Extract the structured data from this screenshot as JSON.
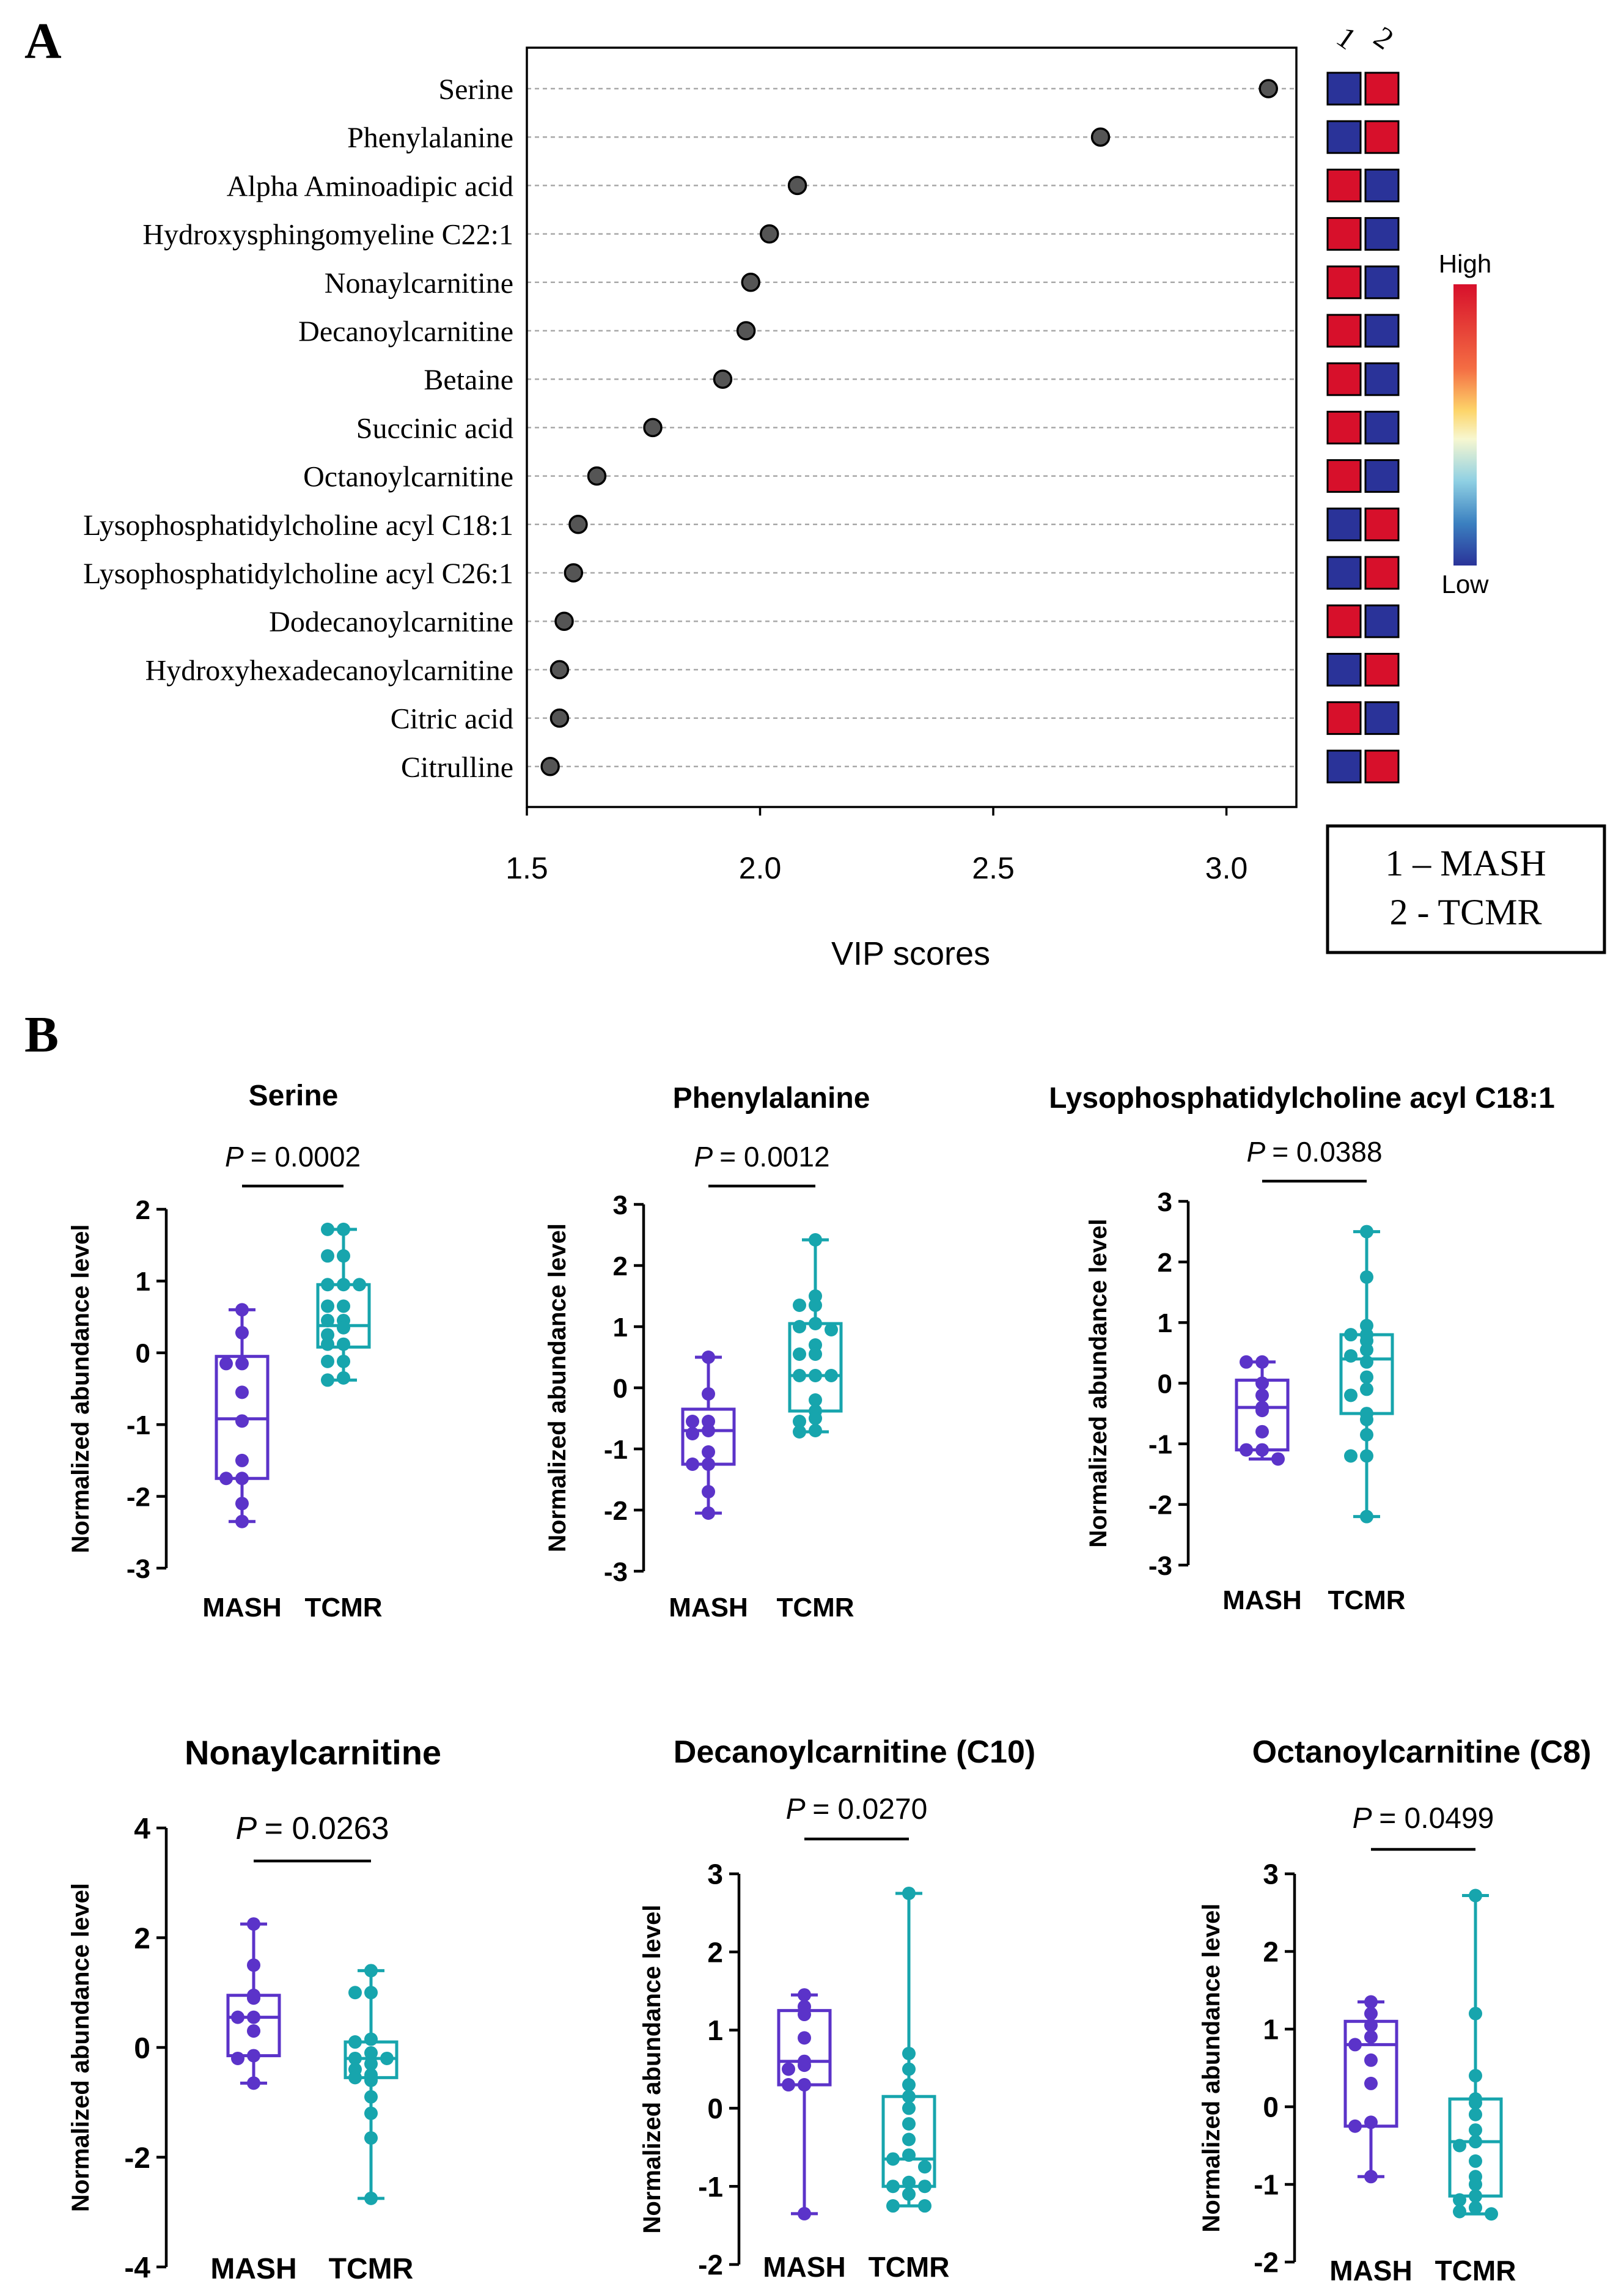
{
  "panel_a": {
    "label": "A",
    "metabolites": [
      "Serine",
      "Phenylalanine",
      "Alpha Aminoadipic acid",
      "Hydroxysphingomyeline C22:1",
      "Nonaylcarnitine",
      "Decanoylcarnitine",
      "Betaine",
      "Succinic acid",
      "Octanoylcarnitine",
      "Lysophosphatidylcholine acyl C18:1",
      "Lysophosphatidylcholine acyl C26:1",
      "Dodecanoylcarnitine",
      "Hydroxyhexadecanoylcarnitine",
      "Citric acid",
      "Citrulline"
    ],
    "heat_col_labels": [
      "1",
      "2"
    ],
    "heat_high_group": [
      2,
      2,
      1,
      1,
      1,
      1,
      1,
      1,
      1,
      2,
      2,
      1,
      2,
      1,
      2
    ],
    "scale_high": "High",
    "scale_low": "Low",
    "legend_line1": "1 – MASH",
    "legend_line2": "2 - TCMR",
    "colors": {
      "high": "#d7102b",
      "low": "#2a3399",
      "dot": "#555555"
    }
  },
  "panel_b": {
    "label": "B",
    "y_label": "Normalized abundance level",
    "groups": [
      "MASH",
      "TCMR"
    ],
    "colors": {
      "mash": "#5b33c9",
      "tcmr": "#17a5ad"
    }
  },
  "chart_data": [
    {
      "type": "scatter",
      "title": "",
      "xlabel": "VIP scores",
      "ylabel": "",
      "xlim": [
        1.5,
        3.15
      ],
      "xticks": [
        "1.5",
        "2.0",
        "2.5",
        "3.0"
      ],
      "categories": [
        "Serine",
        "Phenylalanine",
        "Alpha Aminoadipic acid",
        "Hydroxysphingomyeline C22:1",
        "Nonaylcarnitine",
        "Decanoylcarnitine",
        "Betaine",
        "Succinic acid",
        "Octanoylcarnitine",
        "Lysophosphatidylcholine acyl C18:1",
        "Lysophosphatidylcholine acyl C26:1",
        "Dodecanoylcarnitine",
        "Hydroxyhexadecanoylcarnitine",
        "Citric acid",
        "Citrulline"
      ],
      "values": [
        3.09,
        2.73,
        2.08,
        2.02,
        1.98,
        1.97,
        1.92,
        1.77,
        1.65,
        1.61,
        1.6,
        1.58,
        1.57,
        1.57,
        1.55
      ]
    },
    {
      "type": "box",
      "title": "Serine",
      "p_value": "= 0.0002",
      "ylim": [
        -3,
        2
      ],
      "yticks": [
        "-3",
        "-2",
        "-1",
        "0",
        "1",
        "2"
      ],
      "series": [
        {
          "name": "MASH",
          "min": -2.35,
          "q1": -1.75,
          "median": -0.92,
          "q3": -0.05,
          "max": 0.6,
          "points": [
            0.6,
            0.28,
            -0.15,
            -0.15,
            -0.55,
            -0.95,
            -1.5,
            -1.75,
            -1.75,
            -2.1,
            -2.35
          ]
        },
        {
          "name": "TCMR",
          "min": -0.38,
          "q1": 0.08,
          "median": 0.38,
          "q3": 0.95,
          "max": 1.72,
          "points": [
            1.72,
            1.72,
            1.35,
            1.35,
            0.95,
            0.95,
            0.95,
            0.65,
            0.65,
            0.45,
            0.45,
            0.35,
            0.25,
            0.12,
            0.12,
            -0.12,
            -0.12,
            -0.35,
            -0.38
          ]
        }
      ]
    },
    {
      "type": "box",
      "title": "Phenylalanine",
      "p_value": "= 0.0012",
      "ylim": [
        -3,
        3
      ],
      "yticks": [
        "-3",
        "-2",
        "-1",
        "0",
        "1",
        "2",
        "3"
      ],
      "series": [
        {
          "name": "MASH",
          "min": -2.05,
          "q1": -1.25,
          "median": -0.7,
          "q3": -0.35,
          "max": 0.5,
          "points": [
            0.5,
            -0.1,
            -0.55,
            -0.55,
            -0.7,
            -0.75,
            -1.05,
            -1.25,
            -1.25,
            -1.7,
            -2.05
          ]
        },
        {
          "name": "TCMR",
          "min": -0.72,
          "q1": -0.38,
          "median": 0.2,
          "q3": 1.05,
          "max": 2.42,
          "points": [
            2.42,
            1.5,
            1.35,
            1.35,
            1.05,
            1.0,
            0.95,
            0.7,
            0.55,
            0.55,
            0.2,
            0.2,
            0.2,
            -0.2,
            -0.38,
            -0.5,
            -0.55,
            -0.7,
            -0.72
          ]
        }
      ]
    },
    {
      "type": "box",
      "title": "Lysophosphatidylcholine acyl C18:1",
      "p_value": "= 0.0388",
      "ylim": [
        -3,
        3
      ],
      "yticks": [
        "-3",
        "-2",
        "-1",
        "0",
        "1",
        "2",
        "3"
      ],
      "series": [
        {
          "name": "MASH",
          "min": -1.25,
          "q1": -1.1,
          "median": -0.4,
          "q3": 0.05,
          "max": 0.35,
          "points": [
            0.35,
            0.35,
            0.0,
            -0.2,
            -0.4,
            -0.45,
            -0.8,
            -1.1,
            -1.1,
            -1.25
          ]
        },
        {
          "name": "TCMR",
          "min": -2.2,
          "q1": -0.5,
          "median": 0.4,
          "q3": 0.8,
          "max": 2.5,
          "points": [
            2.5,
            1.75,
            0.95,
            0.8,
            0.8,
            0.7,
            0.55,
            0.45,
            0.35,
            0.1,
            -0.1,
            -0.2,
            -0.5,
            -0.6,
            -0.85,
            -1.2,
            -1.2,
            -2.2
          ]
        }
      ]
    },
    {
      "type": "box",
      "title": "Nonaylcarnitine",
      "p_value": "= 0.0263",
      "ylim": [
        -4,
        4
      ],
      "yticks": [
        "-4",
        "-2",
        "0",
        "2",
        "4"
      ],
      "series": [
        {
          "name": "MASH",
          "min": -0.65,
          "q1": -0.15,
          "median": 0.55,
          "q3": 0.95,
          "max": 2.25,
          "points": [
            2.25,
            1.5,
            0.95,
            0.9,
            0.55,
            0.55,
            0.3,
            -0.15,
            -0.2,
            -0.65
          ]
        },
        {
          "name": "TCMR",
          "min": -2.75,
          "q1": -0.55,
          "median": -0.2,
          "q3": 0.1,
          "max": 1.4,
          "points": [
            1.4,
            1.0,
            1.0,
            0.15,
            0.1,
            -0.1,
            -0.2,
            -0.2,
            -0.3,
            -0.4,
            -0.5,
            -0.55,
            -0.6,
            -0.9,
            -1.2,
            -1.65,
            -2.75
          ]
        }
      ]
    },
    {
      "type": "box",
      "title": "Decanoylcarnitine (C10)",
      "p_value": "= 0.0270",
      "ylim": [
        -2,
        3
      ],
      "yticks": [
        "-2",
        "-1",
        "0",
        "1",
        "2",
        "3"
      ],
      "series": [
        {
          "name": "MASH",
          "min": -1.35,
          "q1": 0.3,
          "median": 0.6,
          "q3": 1.25,
          "max": 1.45,
          "points": [
            1.45,
            1.3,
            1.2,
            0.9,
            0.6,
            0.55,
            0.5,
            0.3,
            0.3,
            -1.35
          ]
        },
        {
          "name": "TCMR",
          "min": -1.25,
          "q1": -1.0,
          "median": -0.65,
          "q3": 0.15,
          "max": 2.75,
          "points": [
            2.75,
            0.7,
            0.5,
            0.3,
            0.15,
            0.0,
            -0.2,
            -0.4,
            -0.6,
            -0.65,
            -0.75,
            -0.95,
            -1.0,
            -1.0,
            -1.1,
            -1.25,
            -1.25
          ]
        }
      ]
    },
    {
      "type": "box",
      "title": "Octanoylcarnitine (C8)",
      "p_value": "= 0.0499",
      "ylim": [
        -2,
        3
      ],
      "yticks": [
        "-2",
        "-1",
        "0",
        "1",
        "2",
        "3"
      ],
      "series": [
        {
          "name": "MASH",
          "min": -0.9,
          "q1": -0.25,
          "median": 0.8,
          "q3": 1.1,
          "max": 1.35,
          "points": [
            1.35,
            1.2,
            1.05,
            0.9,
            0.8,
            0.6,
            0.3,
            -0.2,
            -0.25,
            -0.9
          ]
        },
        {
          "name": "TCMR",
          "min": -1.38,
          "q1": -1.15,
          "median": -0.45,
          "q3": 0.1,
          "max": 2.72,
          "points": [
            2.72,
            1.2,
            0.4,
            0.1,
            0.05,
            -0.1,
            -0.3,
            -0.45,
            -0.5,
            -0.7,
            -0.9,
            -1.0,
            -1.15,
            -1.2,
            -1.3,
            -1.35,
            -1.38
          ]
        }
      ]
    }
  ]
}
